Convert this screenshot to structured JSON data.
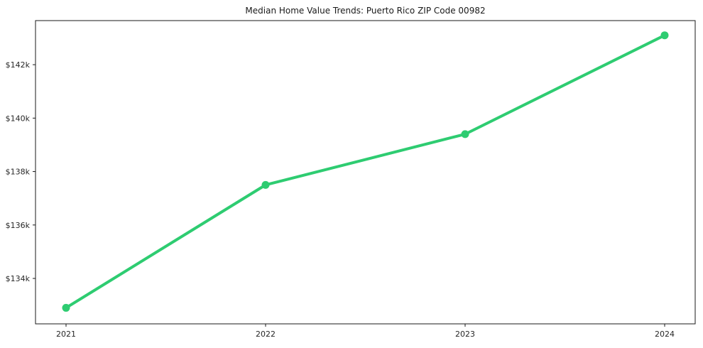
{
  "chart_data": {
    "type": "line",
    "title": "Median Home Value Trends: Puerto Rico ZIP Code 00982",
    "x": [
      2021,
      2022,
      2023,
      2024
    ],
    "x_tick_labels": [
      "2021",
      "2022",
      "2023",
      "2024"
    ],
    "series": [
      {
        "name": "Median home value",
        "values": [
          132900,
          137500,
          139400,
          143100
        ],
        "color": "#2ecc71"
      }
    ],
    "y_ticks": [
      134000,
      136000,
      138000,
      140000,
      142000
    ],
    "y_tick_labels": [
      "$134k",
      "$136k",
      "$138k",
      "$140k",
      "$142k"
    ],
    "ylim": [
      132300,
      143650
    ],
    "xlabel": "",
    "ylabel": "",
    "grid": false,
    "legend": "none",
    "marker": "circle",
    "line_width": 4,
    "marker_radius": 5.5,
    "background": "#ffffff",
    "axis_color": "#1a1a1a",
    "tick_label_color": "#262626"
  }
}
